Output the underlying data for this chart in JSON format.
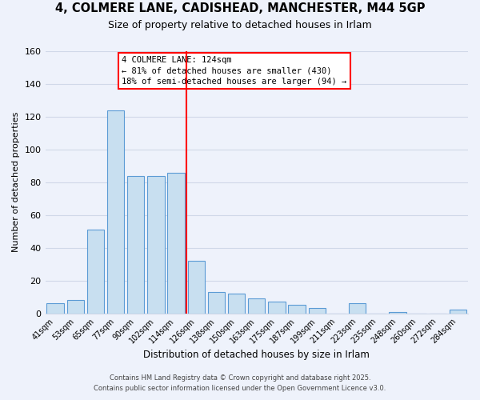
{
  "title": "4, COLMERE LANE, CADISHEAD, MANCHESTER, M44 5GP",
  "subtitle": "Size of property relative to detached houses in Irlam",
  "xlabel": "Distribution of detached houses by size in Irlam",
  "ylabel": "Number of detached properties",
  "bar_labels": [
    "41sqm",
    "53sqm",
    "65sqm",
    "77sqm",
    "90sqm",
    "102sqm",
    "114sqm",
    "126sqm",
    "138sqm",
    "150sqm",
    "163sqm",
    "175sqm",
    "187sqm",
    "199sqm",
    "211sqm",
    "223sqm",
    "235sqm",
    "248sqm",
    "260sqm",
    "272sqm",
    "284sqm"
  ],
  "bar_values": [
    6,
    8,
    51,
    124,
    84,
    84,
    86,
    32,
    13,
    12,
    9,
    7,
    5,
    3,
    0,
    6,
    0,
    1,
    0,
    0,
    2
  ],
  "bar_color": "#c8dff0",
  "bar_edge_color": "#5b9bd5",
  "vline_color": "red",
  "annotation_title": "4 COLMERE LANE: 124sqm",
  "annotation_line1": "← 81% of detached houses are smaller (430)",
  "annotation_line2": "18% of semi-detached houses are larger (94) →",
  "annotation_box_color": "white",
  "annotation_box_edge": "red",
  "ylim": [
    0,
    160
  ],
  "yticks": [
    0,
    20,
    40,
    60,
    80,
    100,
    120,
    140,
    160
  ],
  "footer_line1": "Contains HM Land Registry data © Crown copyright and database right 2025.",
  "footer_line2": "Contains public sector information licensed under the Open Government Licence v3.0.",
  "background_color": "#eef2fb",
  "grid_color": "#d0d8e8"
}
